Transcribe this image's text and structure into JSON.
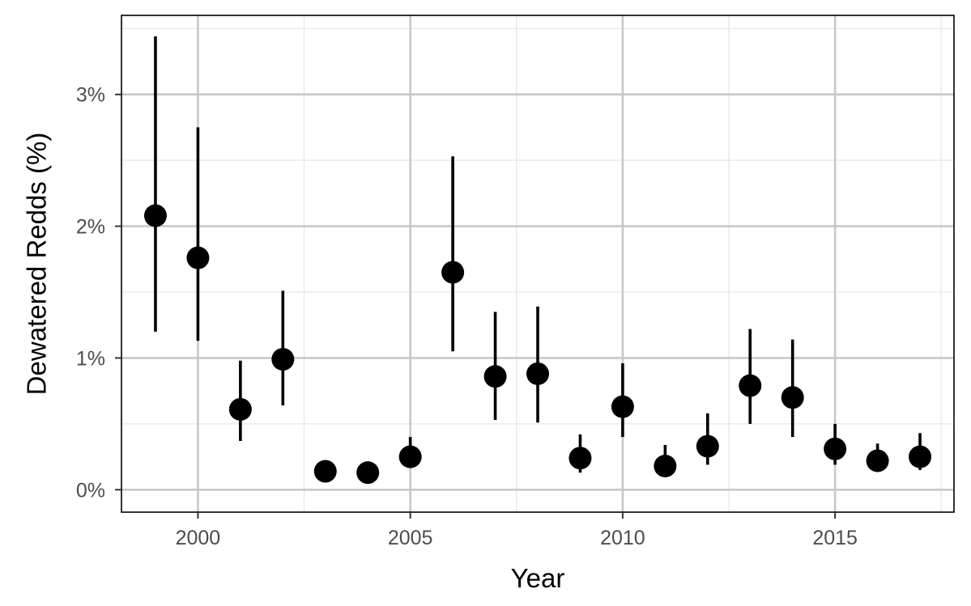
{
  "chart_data": {
    "type": "scatter",
    "title": "",
    "xlabel": "Year",
    "ylabel": "Dewatered Redds (%)",
    "xlim": [
      1998.2,
      2017.8
    ],
    "ylim": [
      -0.17,
      3.6
    ],
    "x_ticks": [
      2000,
      2005,
      2010,
      2015
    ],
    "x_tick_labels": [
      "2000",
      "2005",
      "2010",
      "2015"
    ],
    "y_ticks": [
      0,
      1,
      2,
      3
    ],
    "y_tick_labels": [
      "0%",
      "1%",
      "2%",
      "3%"
    ],
    "grid": true,
    "legend": "none",
    "colors": {
      "points": "#000000",
      "error_bars": "#000000",
      "grid_major": "#c8c8c8",
      "grid_minor": "#e6e6e6",
      "panel_border": "#000000",
      "tick_text": "#4d4d4d"
    },
    "points": [
      {
        "x": 1999,
        "y": 2.08,
        "lo": 1.2,
        "hi": 3.44
      },
      {
        "x": 2000,
        "y": 1.76,
        "lo": 1.13,
        "hi": 2.75
      },
      {
        "x": 2001,
        "y": 0.61,
        "lo": 0.37,
        "hi": 0.98
      },
      {
        "x": 2002,
        "y": 0.99,
        "lo": 0.64,
        "hi": 1.51
      },
      {
        "x": 2003,
        "y": 0.14,
        "lo": 0.14,
        "hi": 0.14
      },
      {
        "x": 2004,
        "y": 0.13,
        "lo": 0.13,
        "hi": 0.13
      },
      {
        "x": 2005,
        "y": 0.25,
        "lo": 0.25,
        "hi": 0.4
      },
      {
        "x": 2006,
        "y": 1.65,
        "lo": 1.05,
        "hi": 2.53
      },
      {
        "x": 2007,
        "y": 0.86,
        "lo": 0.53,
        "hi": 1.35
      },
      {
        "x": 2008,
        "y": 0.88,
        "lo": 0.51,
        "hi": 1.39
      },
      {
        "x": 2009,
        "y": 0.24,
        "lo": 0.13,
        "hi": 0.42
      },
      {
        "x": 2010,
        "y": 0.63,
        "lo": 0.4,
        "hi": 0.96
      },
      {
        "x": 2011,
        "y": 0.18,
        "lo": 0.18,
        "hi": 0.34
      },
      {
        "x": 2012,
        "y": 0.33,
        "lo": 0.19,
        "hi": 0.58
      },
      {
        "x": 2013,
        "y": 0.79,
        "lo": 0.5,
        "hi": 1.22
      },
      {
        "x": 2014,
        "y": 0.7,
        "lo": 0.4,
        "hi": 1.14
      },
      {
        "x": 2015,
        "y": 0.31,
        "lo": 0.19,
        "hi": 0.5
      },
      {
        "x": 2016,
        "y": 0.22,
        "lo": 0.22,
        "hi": 0.35
      },
      {
        "x": 2017,
        "y": 0.25,
        "lo": 0.15,
        "hi": 0.43
      }
    ]
  }
}
